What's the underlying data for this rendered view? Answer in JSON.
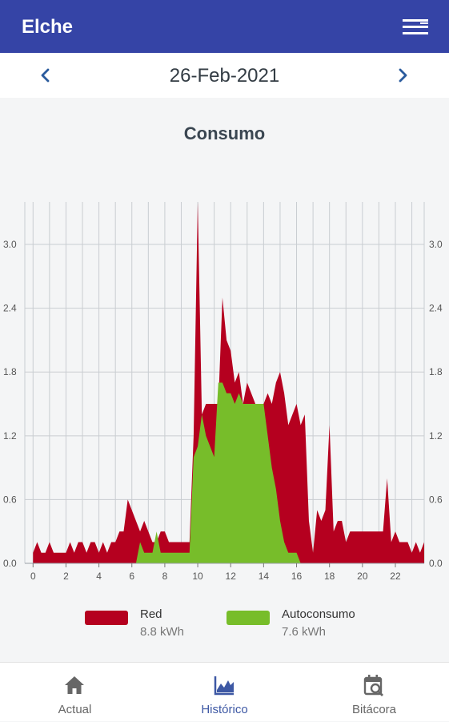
{
  "app": {
    "title": "Elche"
  },
  "date_nav": {
    "date": "26-Feb-2021"
  },
  "chart_data": {
    "type": "area",
    "title": "Consumo",
    "x": [
      0.0,
      0.25,
      0.5,
      0.75,
      1.0,
      1.25,
      1.5,
      1.75,
      2.0,
      2.25,
      2.5,
      2.75,
      3.0,
      3.25,
      3.5,
      3.75,
      4.0,
      4.25,
      4.5,
      4.75,
      5.0,
      5.25,
      5.5,
      5.75,
      6.0,
      6.25,
      6.5,
      6.75,
      7.0,
      7.25,
      7.5,
      7.75,
      8.0,
      8.25,
      8.5,
      8.75,
      9.0,
      9.25,
      9.5,
      9.75,
      10.0,
      10.25,
      10.5,
      10.75,
      11.0,
      11.25,
      11.5,
      11.75,
      12.0,
      12.25,
      12.5,
      12.75,
      13.0,
      13.25,
      13.5,
      13.75,
      14.0,
      14.25,
      14.5,
      14.75,
      15.0,
      15.25,
      15.5,
      15.75,
      16.0,
      16.25,
      16.5,
      16.75,
      17.0,
      17.25,
      17.5,
      17.75,
      18.0,
      18.25,
      18.5,
      18.75,
      19.0,
      19.25,
      19.5,
      19.75,
      20.0,
      20.25,
      20.5,
      20.75,
      21.0,
      21.25,
      21.5,
      21.75,
      22.0,
      22.25,
      22.5,
      22.75,
      23.0,
      23.25,
      23.5,
      23.75
    ],
    "series": [
      {
        "name": "Red",
        "color": "#b5001f",
        "values": [
          0.1,
          0.2,
          0.1,
          0.1,
          0.2,
          0.1,
          0.1,
          0.1,
          0.1,
          0.2,
          0.1,
          0.2,
          0.2,
          0.1,
          0.2,
          0.2,
          0.1,
          0.2,
          0.1,
          0.2,
          0.2,
          0.3,
          0.3,
          0.6,
          0.5,
          0.4,
          0.3,
          0.4,
          0.3,
          0.2,
          0.2,
          0.3,
          0.3,
          0.2,
          0.2,
          0.2,
          0.2,
          0.2,
          0.2,
          1.2,
          3.4,
          1.4,
          1.5,
          1.5,
          1.5,
          1.5,
          2.5,
          2.1,
          2.0,
          1.7,
          1.8,
          1.5,
          1.7,
          1.6,
          1.5,
          1.5,
          1.5,
          1.6,
          1.5,
          1.7,
          1.8,
          1.6,
          1.3,
          1.4,
          1.5,
          1.3,
          1.4,
          0.4,
          0.1,
          0.5,
          0.4,
          0.5,
          1.3,
          0.3,
          0.4,
          0.4,
          0.2,
          0.3,
          0.3,
          0.3,
          0.3,
          0.3,
          0.3,
          0.3,
          0.3,
          0.3,
          0.8,
          0.2,
          0.3,
          0.2,
          0.2,
          0.2,
          0.1,
          0.2,
          0.1,
          0.2
        ]
      },
      {
        "name": "Autoconsumo",
        "color": "#77bd2a",
        "values": [
          0,
          0,
          0,
          0,
          0,
          0,
          0,
          0,
          0,
          0,
          0,
          0,
          0,
          0,
          0,
          0,
          0,
          0,
          0,
          0,
          0,
          0,
          0,
          0,
          0,
          0,
          0.2,
          0.1,
          0.1,
          0.1,
          0.3,
          0.1,
          0.1,
          0.1,
          0.1,
          0.1,
          0.1,
          0.1,
          0.1,
          1.0,
          1.1,
          1.4,
          1.2,
          1.1,
          1.0,
          1.7,
          1.7,
          1.6,
          1.6,
          1.5,
          1.6,
          1.5,
          1.5,
          1.5,
          1.5,
          1.5,
          1.5,
          1.2,
          0.9,
          0.7,
          0.4,
          0.2,
          0.1,
          0.1,
          0.1,
          0,
          0,
          0,
          0,
          0,
          0,
          0,
          0,
          0,
          0,
          0,
          0,
          0,
          0,
          0,
          0,
          0,
          0,
          0,
          0,
          0,
          0,
          0,
          0,
          0,
          0,
          0,
          0,
          0,
          0,
          0
        ]
      }
    ],
    "xticks": [
      "0",
      "2",
      "4",
      "6",
      "8",
      "10",
      "12",
      "14",
      "16",
      "18",
      "20",
      "22"
    ],
    "yticks": [
      "0.0",
      "0.6",
      "1.2",
      "1.8",
      "2.4",
      "3.0"
    ],
    "xlim": [
      -0.5,
      23.75
    ],
    "ylim": [
      0,
      3.4
    ],
    "grid": true,
    "legend_placement": "bottom"
  },
  "legend": [
    {
      "name": "Red",
      "value": "8.8 kWh",
      "color": "#b5001f"
    },
    {
      "name": "Autoconsumo",
      "value": "7.6 kWh",
      "color": "#77bd2a"
    }
  ],
  "bottom_nav": [
    {
      "label": "Actual",
      "icon": "home-icon",
      "active": false
    },
    {
      "label": "Histórico",
      "icon": "chart-line-icon",
      "active": true
    },
    {
      "label": "Bitácora",
      "icon": "calendar-search-icon",
      "active": false
    }
  ],
  "colors": {
    "primary": "#3544a6",
    "active_nav": "#3d58a4",
    "inactive_nav": "#666666"
  }
}
